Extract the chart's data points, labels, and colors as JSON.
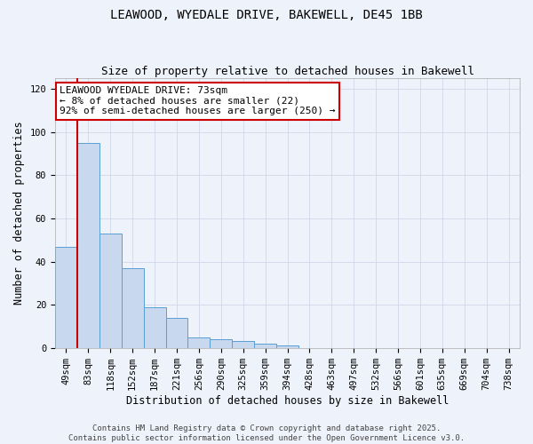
{
  "title_line1": "LEAWOOD, WYEDALE DRIVE, BAKEWELL, DE45 1BB",
  "title_line2": "Size of property relative to detached houses in Bakewell",
  "xlabel": "Distribution of detached houses by size in Bakewell",
  "ylabel": "Number of detached properties",
  "bin_labels": [
    "49sqm",
    "83sqm",
    "118sqm",
    "152sqm",
    "187sqm",
    "221sqm",
    "256sqm",
    "290sqm",
    "325sqm",
    "359sqm",
    "394sqm",
    "428sqm",
    "463sqm",
    "497sqm",
    "532sqm",
    "566sqm",
    "601sqm",
    "635sqm",
    "669sqm",
    "704sqm",
    "738sqm"
  ],
  "bar_heights": [
    47,
    95,
    53,
    37,
    19,
    14,
    5,
    4,
    3,
    2,
    1,
    0,
    0,
    0,
    0,
    0,
    0,
    0,
    0,
    0,
    0
  ],
  "bar_color": "#c8d8ef",
  "bar_edge_color": "#5a9fd4",
  "vline_x": 0.5,
  "vline_color": "#cc0000",
  "annotation_text": "LEAWOOD WYEDALE DRIVE: 73sqm\n← 8% of detached houses are smaller (22)\n92% of semi-detached houses are larger (250) →",
  "annotation_box_color": "#ffffff",
  "annotation_box_edge": "#cc0000",
  "yticks": [
    0,
    20,
    40,
    60,
    80,
    100,
    120
  ],
  "ylim": [
    0,
    125
  ],
  "grid_color": "#d0d8e8",
  "background_color": "#eef2fb",
  "footer_line1": "Contains HM Land Registry data © Crown copyright and database right 2025.",
  "footer_line2": "Contains public sector information licensed under the Open Government Licence v3.0.",
  "title_fontsize": 10,
  "subtitle_fontsize": 9,
  "axis_label_fontsize": 8.5,
  "tick_fontsize": 7.5,
  "annotation_fontsize": 8,
  "footer_fontsize": 6.5
}
